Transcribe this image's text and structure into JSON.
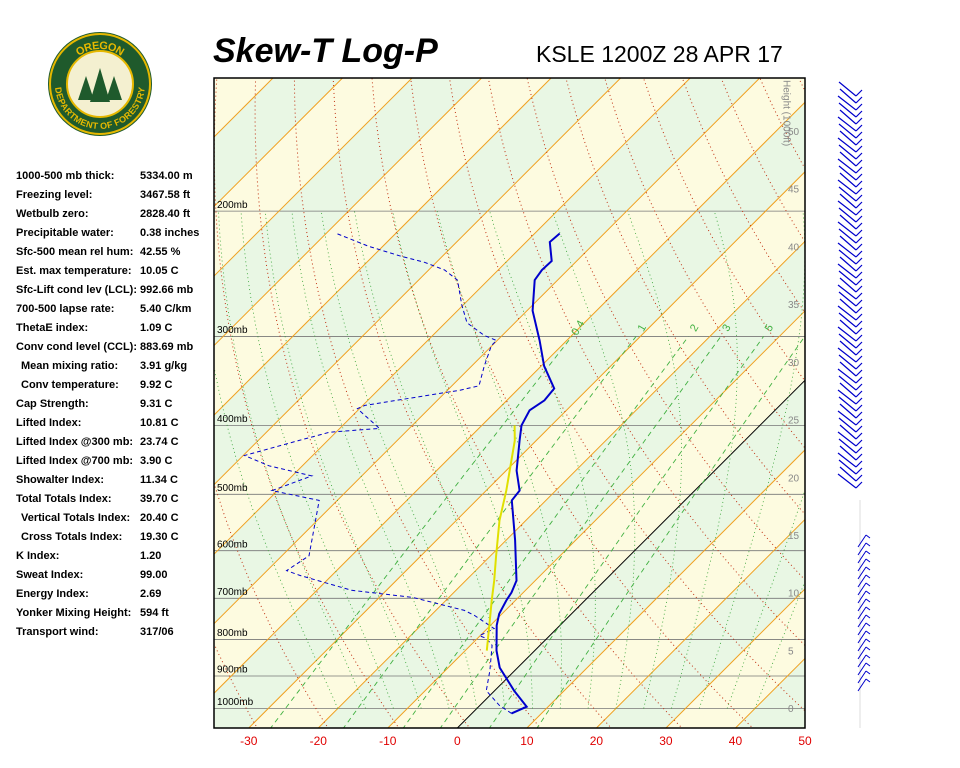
{
  "logo": {
    "top": "OREGON",
    "bottom": "DEPARTMENT OF FORESTRY"
  },
  "indices": [
    [
      "1000-500 mb thick:",
      "5334.00 m"
    ],
    [
      "Freezing level:",
      "3467.58 ft"
    ],
    [
      "Wetbulb zero:",
      "2828.40 ft"
    ],
    [
      "Precipitable water:",
      "0.38 inches"
    ],
    [
      "Sfc-500 mean rel hum:",
      "42.55 %"
    ],
    [
      "Est. max temperature:",
      "10.05 C"
    ],
    [
      "Sfc-Lift cond lev (LCL):",
      "992.66 mb"
    ],
    [
      "700-500 lapse rate:",
      "5.40 C/km"
    ],
    [
      "ThetaE index:",
      "1.09 C"
    ],
    [
      "Conv cond level (CCL):",
      "883.69 mb"
    ],
    [
      "Mean mixing ratio:",
      "3.91 g/kg"
    ],
    [
      "Conv temperature:",
      "9.92 C"
    ],
    [
      "Cap Strength:",
      "9.31 C"
    ],
    [
      "Lifted Index:",
      "10.81 C"
    ],
    [
      "Lifted Index @300 mb:",
      "23.74 C"
    ],
    [
      "Lifted Index @700 mb:",
      "3.90 C"
    ],
    [
      "Showalter Index:",
      "11.34 C"
    ],
    [
      "Total Totals Index:",
      "39.70 C"
    ],
    [
      "Vertical Totals Index:",
      "20.40 C"
    ],
    [
      "Cross Totals Index:",
      "19.30 C"
    ],
    [
      "K Index:",
      "1.20"
    ],
    [
      "Sweat Index:",
      "99.00"
    ],
    [
      "Energy Index:",
      "2.69"
    ],
    [
      "Yonker Mixing Height:",
      "594 ft"
    ],
    [
      "Transport wind:",
      "317/06"
    ]
  ],
  "chart_data": {
    "type": "skewt",
    "title": "Skew-T Log-P",
    "subtitle": "KSLE 1200Z 28 APR 17",
    "xlim": [
      -35,
      50
    ],
    "xticks": [
      -30,
      -20,
      -10,
      0,
      10,
      20,
      30,
      40,
      50
    ],
    "ylog": true,
    "ylim": [
      1065,
      130
    ],
    "yticks": [
      {
        "value": 1000,
        "label": "1000mb"
      },
      {
        "value": 900,
        "label": "900mb"
      },
      {
        "value": 800,
        "label": "800mb"
      },
      {
        "value": 700,
        "label": "700mb"
      },
      {
        "value": 600,
        "label": "600mb"
      },
      {
        "value": 500,
        "label": "500mb"
      },
      {
        "value": 400,
        "label": "400mb"
      },
      {
        "value": 300,
        "label": "300mb"
      },
      {
        "value": 200,
        "label": "200mb"
      }
    ],
    "y2label": "Height (1000ft)",
    "y2lim": [
      -1.6,
      54.7
    ],
    "y2ticks": [
      0,
      5,
      10,
      15,
      20,
      25,
      30,
      35,
      40,
      45,
      50
    ],
    "mixing_ratios": [
      0.4,
      1,
      2,
      3,
      5,
      8
    ],
    "series": [
      {
        "color": "#0000cc",
        "dashed": false,
        "pressure": [
          1016,
          994,
          944,
          876,
          829,
          764,
          736,
          705,
          687,
          661,
          580,
          510,
          494,
          463,
          420,
          400,
          381,
          369,
          355,
          330,
          304,
          276,
          250,
          242,
          235,
          221,
          215
        ],
        "values": [
          5.7,
          6.9,
          2.8,
          -2.6,
          -5.5,
          -9.1,
          -10.4,
          -11.3,
          -11.7,
          -12.7,
          -18.7,
          -24.9,
          -25.2,
          -28.5,
          -32.4,
          -34.3,
          -35.3,
          -34.6,
          -34.9,
          -39.6,
          -43.9,
          -49.2,
          -53.3,
          -53.7,
          -53.6,
          -56.6,
          -56.4
        ]
      },
      {
        "color": "#0000cc",
        "dashed": true,
        "pressure": [
          1016,
          990,
          944,
          884,
          815,
          797,
          790,
          772,
          740,
          728,
          698,
          682,
          650,
          640,
          610,
          510,
          494,
          471,
          456,
          441,
          420,
          409,
          404,
          379,
          375,
          357,
          352,
          330,
          309,
          304,
          299,
          287,
          271,
          250,
          242,
          236,
          231,
          224,
          215
        ],
        "values": [
          5.7,
          2.8,
          -1.2,
          -3.6,
          -6.9,
          -8.7,
          -10.1,
          -9.0,
          -13.7,
          -15.9,
          -25.2,
          -35.0,
          -44.6,
          -47.2,
          -46.1,
          -52.6,
          -60.8,
          -57.2,
          -64.8,
          -69.8,
          -64.1,
          -60.9,
          -54.3,
          -60.3,
          -59.7,
          -48.2,
          -46.1,
          -48.2,
          -50.1,
          -50.1,
          -52.6,
          -56.9,
          -60.2,
          -64.4,
          -67.7,
          -71.7,
          -76.3,
          -82.1,
          -88.5
        ]
      },
      {
        "color": "#e0e000",
        "dashed": false,
        "pressure": [
          829,
          752,
          705,
          661,
          610,
          544,
          494,
          463,
          420,
          400
        ],
        "values": [
          -6.9,
          -10.8,
          -13.4,
          -15.9,
          -19.2,
          -23.8,
          -27.1,
          -29.5,
          -33.1,
          -35.3
        ]
      }
    ]
  }
}
